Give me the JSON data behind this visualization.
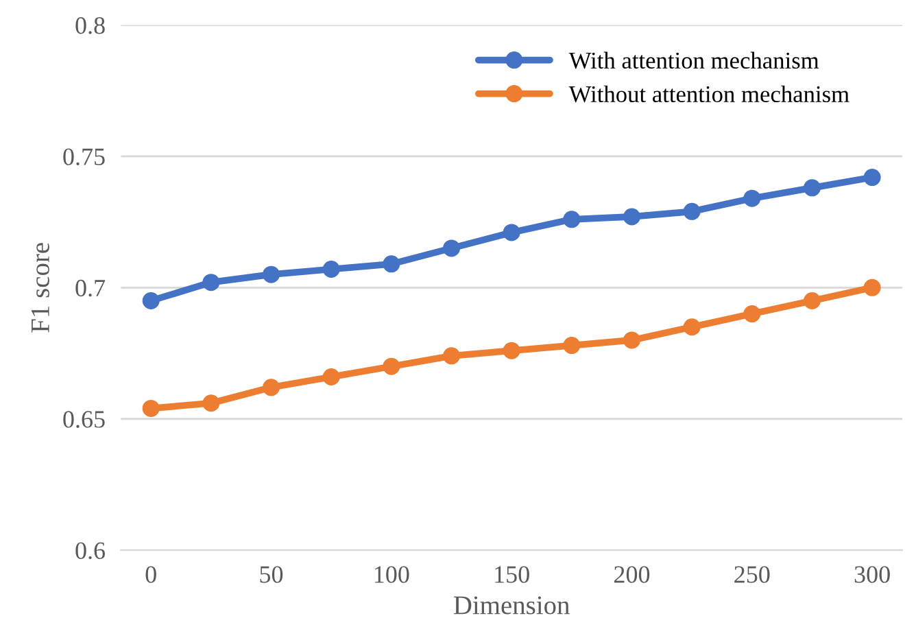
{
  "chart_data": {
    "type": "line",
    "xlabel": "Dimension",
    "ylabel": "F1 score",
    "x": [
      0,
      25,
      50,
      75,
      100,
      125,
      150,
      175,
      200,
      225,
      250,
      275,
      300
    ],
    "series": [
      {
        "name": "With attention mechanism",
        "color": "#4472c4",
        "values": [
          0.695,
          0.702,
          0.705,
          0.707,
          0.709,
          0.715,
          0.721,
          0.726,
          0.727,
          0.729,
          0.734,
          0.738,
          0.742
        ]
      },
      {
        "name": "Without attention mechanism",
        "color": "#ed7d31",
        "values": [
          0.654,
          0.656,
          0.662,
          0.666,
          0.67,
          0.674,
          0.676,
          0.678,
          0.68,
          0.685,
          0.69,
          0.695,
          0.7
        ]
      }
    ],
    "xlim": [
      -12.5,
      312.5
    ],
    "xticks": [
      0,
      50,
      100,
      150,
      200,
      250,
      300
    ],
    "ylim": [
      0.6,
      0.8
    ],
    "yticks": [
      0.6,
      0.65,
      0.7,
      0.75,
      0.8
    ],
    "grid": "y",
    "legend": "top right",
    "marker": "circle",
    "line_style": "solid"
  }
}
